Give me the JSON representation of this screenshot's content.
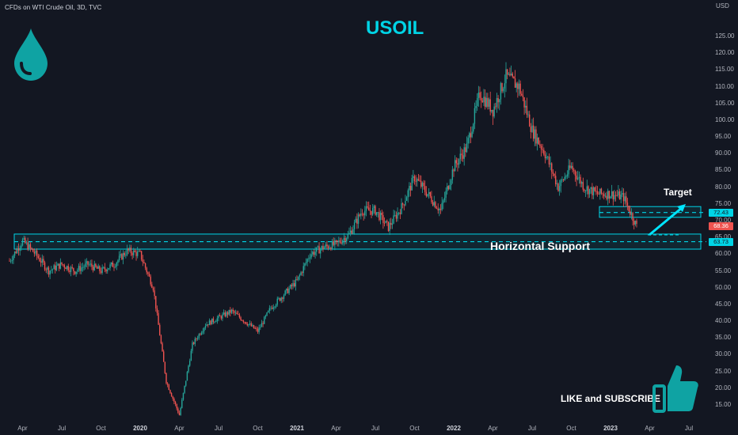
{
  "header": {
    "instrument": "CFDs on WTI Crude Oil, 3D, TVC",
    "title": "USOIL",
    "currency": "USD"
  },
  "annotations": {
    "target": "Target",
    "support": "Horizontal Support",
    "cta": "LIKE and SUBSCRIBE"
  },
  "icons": {
    "drop": "oil-drop-icon",
    "thumb": "thumbs-up-icon"
  },
  "colors": {
    "background": "#131722",
    "up": "#26a69a",
    "down": "#ef5350",
    "accent": "#00d4e6"
  },
  "price_labels": [
    {
      "text": "72.43",
      "value": 72.43,
      "bg": "#00d4e6",
      "fg": "#131722"
    },
    {
      "text": "68.36",
      "value": 68.36,
      "bg": "#ef5350",
      "fg": "#ffffff"
    },
    {
      "text": "63.73",
      "value": 63.73,
      "bg": "#00d4e6",
      "fg": "#131722"
    }
  ],
  "chart_data": {
    "type": "candlestick",
    "title": "USOIL",
    "ylabel": "USD",
    "y_ticks": [
      15,
      20,
      25,
      30,
      35,
      40,
      45,
      50,
      55,
      60,
      65,
      70,
      75,
      80,
      85,
      90,
      95,
      100,
      105,
      110,
      115,
      120,
      125
    ],
    "x_ticks": [
      "Apr",
      "Jul",
      "Oct",
      "2020",
      "Apr",
      "Jul",
      "Oct",
      "2021",
      "Apr",
      "Jul",
      "Oct",
      "2022",
      "Apr",
      "Jul",
      "Oct",
      "2023",
      "Apr",
      "Jul"
    ],
    "x_range": [
      "2019-03",
      "2023-07"
    ],
    "ylim": [
      12,
      130
    ],
    "zones": [
      {
        "name": "Target",
        "low": 71.0,
        "high": 74.2,
        "level": 72.43
      },
      {
        "name": "Horizontal Support",
        "low": 61.5,
        "high": 66.0,
        "level": 63.73
      }
    ],
    "last_close": 68.36,
    "approx_close_path": [
      [
        "2019-03",
        58
      ],
      [
        "2019-04",
        64
      ],
      [
        "2019-05",
        60
      ],
      [
        "2019-06",
        55
      ],
      [
        "2019-07",
        57
      ],
      [
        "2019-08",
        55
      ],
      [
        "2019-09",
        57
      ],
      [
        "2019-10",
        55
      ],
      [
        "2019-11",
        57
      ],
      [
        "2019-12",
        61
      ],
      [
        "2020-01",
        60
      ],
      [
        "2020-02",
        50
      ],
      [
        "2020-03",
        22
      ],
      [
        "2020-04",
        12
      ],
      [
        "2020-05",
        33
      ],
      [
        "2020-06",
        39
      ],
      [
        "2020-07",
        41
      ],
      [
        "2020-08",
        43
      ],
      [
        "2020-09",
        40
      ],
      [
        "2020-10",
        37
      ],
      [
        "2020-11",
        44
      ],
      [
        "2020-12",
        48
      ],
      [
        "2021-01",
        52
      ],
      [
        "2021-02",
        60
      ],
      [
        "2021-03",
        62
      ],
      [
        "2021-04",
        63
      ],
      [
        "2021-05",
        66
      ],
      [
        "2021-06",
        73
      ],
      [
        "2021-07",
        73
      ],
      [
        "2021-08",
        68
      ],
      [
        "2021-09",
        74
      ],
      [
        "2021-10",
        83
      ],
      [
        "2021-11",
        78
      ],
      [
        "2021-12",
        73
      ],
      [
        "2022-01",
        86
      ],
      [
        "2022-02",
        92
      ],
      [
        "2022-03",
        108
      ],
      [
        "2022-04",
        103
      ],
      [
        "2022-05",
        113
      ],
      [
        "2022-06",
        110
      ],
      [
        "2022-07",
        97
      ],
      [
        "2022-08",
        90
      ],
      [
        "2022-09",
        80
      ],
      [
        "2022-10",
        86
      ],
      [
        "2022-11",
        80
      ],
      [
        "2022-12",
        78
      ],
      [
        "2023-01",
        78
      ],
      [
        "2023-02",
        77
      ],
      [
        "2023-03",
        68.36
      ]
    ]
  }
}
